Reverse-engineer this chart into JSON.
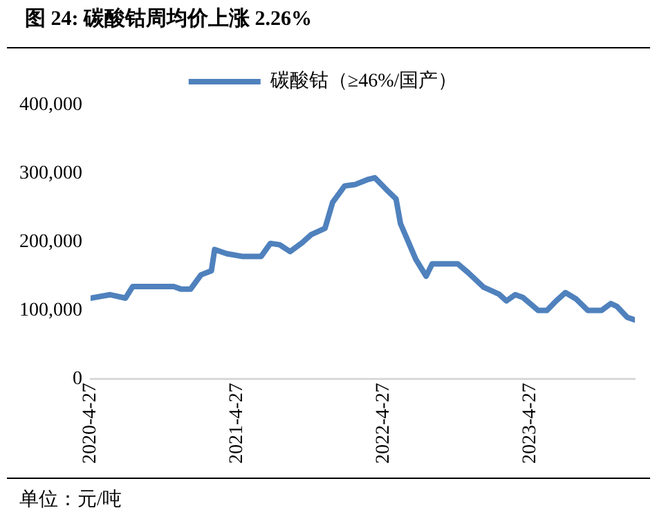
{
  "chart_data": {
    "type": "line",
    "title": "图 24:  碳酸钴周均价上涨 2.26%",
    "annotations": [
      "单位：元/吨"
    ],
    "x": [
      "2020-04-27",
      "2020-06-15",
      "2020-07-23",
      "2020-08-10",
      "2020-11-20",
      "2020-12-09",
      "2021-01-01",
      "2021-01-27",
      "2021-02-22",
      "2021-03-02",
      "2021-04-01",
      "2021-05-09",
      "2021-06-26",
      "2021-07-19",
      "2021-08-11",
      "2021-09-06",
      "2021-10-06",
      "2021-10-29",
      "2021-12-02",
      "2021-12-21",
      "2022-01-20",
      "2022-02-15",
      "2022-03-17",
      "2022-04-05",
      "2022-05-05",
      "2022-05-28",
      "2022-06-08",
      "2022-06-27",
      "2022-07-16",
      "2022-08-11",
      "2022-08-26",
      "2022-10-29",
      "2022-11-24",
      "2023-01-01",
      "2023-02-08",
      "2023-02-27",
      "2023-03-21",
      "2023-04-09",
      "2023-05-17",
      "2023-06-08",
      "2023-07-01",
      "2023-07-24",
      "2023-08-19",
      "2023-09-18",
      "2023-10-22",
      "2023-11-14",
      "2023-11-29",
      "2023-12-25",
      "2024-01-13"
    ],
    "series": [
      {
        "name": "碳酸钴（≥46%/国产）",
        "color": "#4f81bd",
        "values": [
          118000,
          123000,
          118000,
          135000,
          135000,
          131000,
          131000,
          152000,
          158000,
          189000,
          183000,
          179000,
          179000,
          198000,
          196000,
          186000,
          199000,
          211000,
          220000,
          258000,
          282000,
          284000,
          291000,
          294000,
          276000,
          263000,
          227000,
          201000,
          175000,
          150000,
          168000,
          168000,
          155000,
          134000,
          124000,
          114000,
          123000,
          119000,
          100000,
          100000,
          114000,
          126000,
          117000,
          100000,
          100000,
          110000,
          106000,
          90000,
          86000
        ]
      }
    ],
    "xlim": [
      "2020-04-27",
      "2024-01-13"
    ],
    "xticks": [
      {
        "value": "2020-04-27",
        "label": "2020-4-27"
      },
      {
        "value": "2021-04-27",
        "label": "2021-4-27"
      },
      {
        "value": "2022-04-27",
        "label": "2022-4-27"
      },
      {
        "value": "2023-04-27",
        "label": "2023-4-27"
      }
    ],
    "ylim": [
      0,
      400000
    ],
    "yticks": [
      {
        "value": 0,
        "label": "0"
      },
      {
        "value": 100000,
        "label": "100,000"
      },
      {
        "value": 200000,
        "label": "200,000"
      },
      {
        "value": 300000,
        "label": "300,000"
      },
      {
        "value": 400000,
        "label": "400,000"
      }
    ],
    "grid": false,
    "legend": "top",
    "marker": "none",
    "line_style": "solid"
  }
}
